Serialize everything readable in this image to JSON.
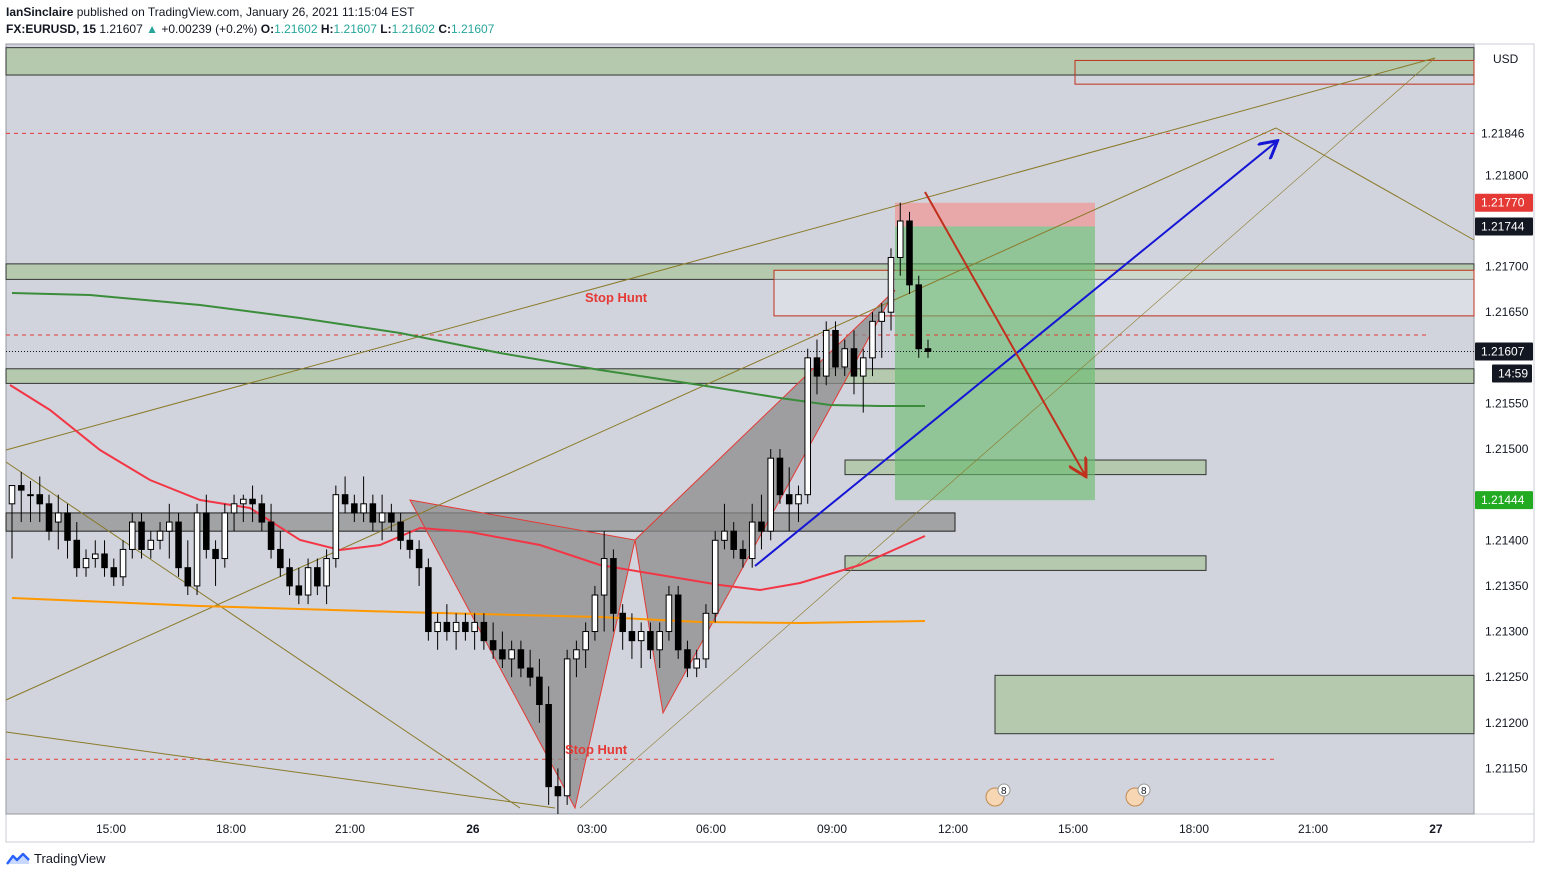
{
  "header": {
    "author": "IanSinclaire",
    "published": "published on TradingView.com, January 26, 2021 11:15:04 EST",
    "symbol": "FX:EURUSD, 15",
    "last": "1.21607",
    "change": "+0.00239 (+0.2%)",
    "o_label": "O:",
    "o": "1.21602",
    "h_label": "H:",
    "h": "1.21607",
    "l_label": "L:",
    "l": "1.21602",
    "c_label": "C:",
    "c": "1.21607"
  },
  "footer": {
    "brand": "TradingView"
  },
  "colors": {
    "zone_fill": "#b5c9ae",
    "bull": "#ffffff",
    "bear": "#000000",
    "ema_red": "#f23645",
    "ema_green": "#3b8d3b",
    "ema_orange": "#ff9800",
    "arrow_blue": "#1515d6",
    "arrow_red": "#c0301c",
    "label_red": "#e53935",
    "pattern_fill": "#8c8c8c",
    "trend_olive": "#8b7a2a"
  },
  "chart_data": {
    "type": "candlestick",
    "currency": "USD",
    "ylim": [
      1.211,
      1.21944
    ],
    "y_ticks": [
      "1.21800",
      "1.21700",
      "1.21650",
      "1.21550",
      "1.21500",
      "1.21400",
      "1.21350",
      "1.21300",
      "1.21250",
      "1.21200",
      "1.21150"
    ],
    "x_ticks": [
      "15:00",
      "18:00",
      "21:00",
      "26",
      "03:00",
      "06:00",
      "09:00",
      "12:00",
      "15:00",
      "18:00",
      "21:00",
      "27"
    ],
    "price_badges": [
      {
        "label": "1.21846",
        "bg": "#ffffff",
        "fg": "#131722"
      },
      {
        "label": "1.21770",
        "bg": "#e53935",
        "fg": "#ffffff"
      },
      {
        "label": "1.21744",
        "bg": "#131722",
        "fg": "#ffffff"
      },
      {
        "label": "1.21607",
        "bg": "#131722",
        "fg": "#ffffff"
      },
      {
        "label": "14:59",
        "bg": "#131722",
        "fg": "#ffffff"
      },
      {
        "label": "1.21444",
        "bg": "#22ab22",
        "fg": "#ffffff"
      }
    ],
    "annotations": [
      "Stop Hunt",
      "Stop Hunt"
    ],
    "event_badges": [
      "8",
      "8"
    ],
    "candles_ohlc": [
      [
        1.2144,
        1.2146,
        1.2138,
        1.2146
      ],
      [
        1.2146,
        1.21475,
        1.2142,
        1.21455
      ],
      [
        1.2145,
        1.21465,
        1.2142,
        1.2145
      ],
      [
        1.2145,
        1.2147,
        1.2142,
        1.2144
      ],
      [
        1.2144,
        1.2145,
        1.214,
        1.2141
      ],
      [
        1.2142,
        1.2145,
        1.2139,
        1.2143
      ],
      [
        1.2143,
        1.2144,
        1.2138,
        1.214
      ],
      [
        1.214,
        1.2142,
        1.2136,
        1.2137
      ],
      [
        1.2137,
        1.2139,
        1.2136,
        1.2138
      ],
      [
        1.2138,
        1.214,
        1.2137,
        1.21385
      ],
      [
        1.21385,
        1.214,
        1.2136,
        1.2137
      ],
      [
        1.2137,
        1.2138,
        1.2135,
        1.2136
      ],
      [
        1.2136,
        1.214,
        1.2135,
        1.2139
      ],
      [
        1.2139,
        1.2143,
        1.2138,
        1.2142
      ],
      [
        1.2142,
        1.2143,
        1.2138,
        1.2139
      ],
      [
        1.2139,
        1.2141,
        1.2138,
        1.214
      ],
      [
        1.214,
        1.2142,
        1.2139,
        1.2141
      ],
      [
        1.2141,
        1.2144,
        1.2138,
        1.2142
      ],
      [
        1.2142,
        1.2143,
        1.2136,
        1.2137
      ],
      [
        1.2137,
        1.214,
        1.2134,
        1.2135
      ],
      [
        1.2135,
        1.2144,
        1.2134,
        1.2143
      ],
      [
        1.2143,
        1.2145,
        1.2138,
        1.2139
      ],
      [
        1.2139,
        1.214,
        1.2135,
        1.2138
      ],
      [
        1.2138,
        1.2144,
        1.2137,
        1.2143
      ],
      [
        1.2143,
        1.2145,
        1.2141,
        1.2144
      ],
      [
        1.2144,
        1.2145,
        1.2142,
        1.21445
      ],
      [
        1.21445,
        1.2146,
        1.2142,
        1.2144
      ],
      [
        1.2144,
        1.2145,
        1.2141,
        1.2142
      ],
      [
        1.2142,
        1.2144,
        1.2138,
        1.2139
      ],
      [
        1.2139,
        1.2141,
        1.2136,
        1.2137
      ],
      [
        1.2137,
        1.2138,
        1.2134,
        1.2135
      ],
      [
        1.2135,
        1.2137,
        1.2133,
        1.2134
      ],
      [
        1.2134,
        1.2138,
        1.2133,
        1.2137
      ],
      [
        1.2137,
        1.2138,
        1.2134,
        1.2135
      ],
      [
        1.2135,
        1.2139,
        1.2133,
        1.2138
      ],
      [
        1.2138,
        1.2146,
        1.2137,
        1.2145
      ],
      [
        1.2145,
        1.2147,
        1.2143,
        1.2144
      ],
      [
        1.2144,
        1.2145,
        1.2142,
        1.2143
      ],
      [
        1.2143,
        1.2147,
        1.2142,
        1.2144
      ],
      [
        1.2144,
        1.2145,
        1.2141,
        1.2142
      ],
      [
        1.2142,
        1.2145,
        1.214,
        1.2143
      ],
      [
        1.2143,
        1.2144,
        1.2141,
        1.2142
      ],
      [
        1.2142,
        1.2143,
        1.2139,
        1.214
      ],
      [
        1.214,
        1.2141,
        1.2138,
        1.2139
      ],
      [
        1.2139,
        1.214,
        1.2135,
        1.2137
      ],
      [
        1.2137,
        1.2138,
        1.2129,
        1.213
      ],
      [
        1.213,
        1.2132,
        1.2128,
        1.2131
      ],
      [
        1.2131,
        1.2133,
        1.2129,
        1.213
      ],
      [
        1.213,
        1.2132,
        1.2128,
        1.2131
      ],
      [
        1.2131,
        1.2132,
        1.2129,
        1.213
      ],
      [
        1.213,
        1.2132,
        1.2128,
        1.2131
      ],
      [
        1.2131,
        1.2132,
        1.2128,
        1.2129
      ],
      [
        1.2129,
        1.2131,
        1.2127,
        1.2128
      ],
      [
        1.2128,
        1.213,
        1.2126,
        1.2127
      ],
      [
        1.2127,
        1.2129,
        1.2125,
        1.2128
      ],
      [
        1.2128,
        1.2129,
        1.2125,
        1.2126
      ],
      [
        1.2126,
        1.2128,
        1.2124,
        1.2125
      ],
      [
        1.2125,
        1.2127,
        1.212,
        1.2122
      ],
      [
        1.2122,
        1.2124,
        1.2111,
        1.2113
      ],
      [
        1.2113,
        1.2115,
        1.211,
        1.2112
      ],
      [
        1.2112,
        1.2128,
        1.2111,
        1.2127
      ],
      [
        1.2127,
        1.2129,
        1.2125,
        1.2128
      ],
      [
        1.2128,
        1.2131,
        1.2126,
        1.213
      ],
      [
        1.213,
        1.2135,
        1.2129,
        1.2134
      ],
      [
        1.2134,
        1.2141,
        1.213,
        1.2138
      ],
      [
        1.2138,
        1.2139,
        1.213,
        1.2132
      ],
      [
        1.2132,
        1.2133,
        1.2128,
        1.213
      ],
      [
        1.213,
        1.2132,
        1.2127,
        1.2129
      ],
      [
        1.2129,
        1.2131,
        1.2126,
        1.213
      ],
      [
        1.213,
        1.2131,
        1.2127,
        1.2128
      ],
      [
        1.2128,
        1.2131,
        1.2126,
        1.213
      ],
      [
        1.213,
        1.2135,
        1.2129,
        1.2134
      ],
      [
        1.2134,
        1.2135,
        1.2127,
        1.2128
      ],
      [
        1.2128,
        1.2129,
        1.2125,
        1.2126
      ],
      [
        1.2126,
        1.2128,
        1.2125,
        1.2127
      ],
      [
        1.2127,
        1.2133,
        1.2126,
        1.2132
      ],
      [
        1.2132,
        1.2141,
        1.2131,
        1.214
      ],
      [
        1.214,
        1.2144,
        1.2139,
        1.2141
      ],
      [
        1.2141,
        1.2142,
        1.2138,
        1.2139
      ],
      [
        1.2139,
        1.214,
        1.2137,
        1.2138
      ],
      [
        1.2138,
        1.2144,
        1.2137,
        1.2142
      ],
      [
        1.2142,
        1.2145,
        1.2139,
        1.2141
      ],
      [
        1.2141,
        1.215,
        1.214,
        1.2149
      ],
      [
        1.2149,
        1.215,
        1.2144,
        1.2145
      ],
      [
        1.2145,
        1.2148,
        1.2141,
        1.2144
      ],
      [
        1.2144,
        1.2146,
        1.2142,
        1.2145
      ],
      [
        1.2145,
        1.2161,
        1.2144,
        1.216
      ],
      [
        1.216,
        1.2162,
        1.2156,
        1.2158
      ],
      [
        1.2158,
        1.2164,
        1.2157,
        1.2163
      ],
      [
        1.2163,
        1.2164,
        1.2158,
        1.2159
      ],
      [
        1.2159,
        1.2162,
        1.2158,
        1.2161
      ],
      [
        1.2161,
        1.2163,
        1.2156,
        1.2158
      ],
      [
        1.2158,
        1.2161,
        1.2154,
        1.216
      ],
      [
        1.216,
        1.2165,
        1.2158,
        1.2164
      ],
      [
        1.2164,
        1.2166,
        1.216,
        1.2165
      ],
      [
        1.2165,
        1.2172,
        1.2163,
        1.2171
      ],
      [
        1.2171,
        1.2177,
        1.2169,
        1.2175
      ],
      [
        1.2175,
        1.2176,
        1.2167,
        1.2168
      ],
      [
        1.2168,
        1.2169,
        1.216,
        1.2161
      ],
      [
        1.2161,
        1.2162,
        1.216,
        1.21607
      ]
    ],
    "series": [
      {
        "name": "",
        "style": "red-ema",
        "values": [
          1.2155,
          1.2143,
          1.2138,
          1.2138,
          1.2135,
          1.2133,
          1.2136,
          1.2139,
          1.214,
          1.2138,
          1.2136,
          1.2135,
          1.2138,
          1.2139
        ]
      },
      {
        "name": "",
        "style": "green-ema",
        "values": [
          1.2164,
          1.2164,
          1.2163,
          1.2161,
          1.2159,
          1.2157,
          1.2155,
          1.2153
        ]
      },
      {
        "name": "",
        "style": "orange-ema",
        "values": [
          1.2133,
          1.21315,
          1.21305,
          1.213,
          1.213,
          1.21305
        ]
      }
    ],
    "trade_setup": {
      "entry": 1.21744,
      "stop": 1.2177,
      "target": 1.21444
    }
  }
}
